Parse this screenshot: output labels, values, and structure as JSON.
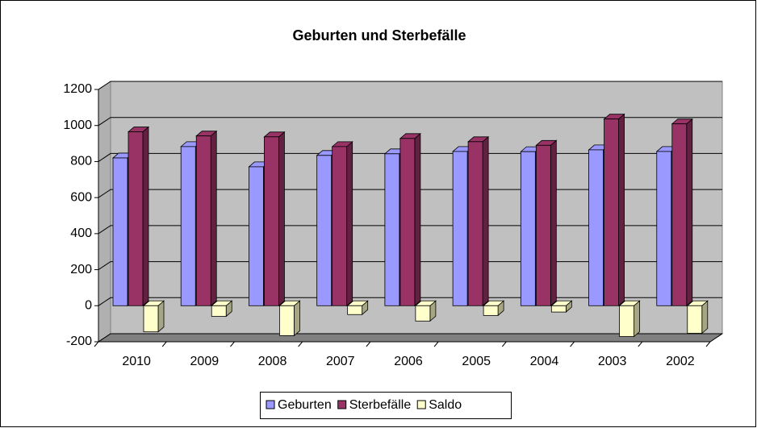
{
  "chart_data": {
    "type": "bar3d",
    "title": "Geburten und Sterbefälle",
    "categories": [
      "2010",
      "2009",
      "2008",
      "2007",
      "2006",
      "2005",
      "2004",
      "2003",
      "2002"
    ],
    "series": [
      {
        "name": "Geburten",
        "color": "#9999ff",
        "values": [
          820,
          883,
          771,
          834,
          843,
          856,
          855,
          865,
          856
        ]
      },
      {
        "name": "Sterbefälle",
        "color": "#993366",
        "values": [
          965,
          942,
          937,
          883,
          928,
          910,
          890,
          1036,
          1009
        ]
      },
      {
        "name": "Saldo",
        "color": "#ffffcc",
        "values": [
          -145,
          -59,
          -166,
          -49,
          -85,
          -54,
          -35,
          -171,
          -153
        ]
      }
    ],
    "ylim": [
      -200,
      1200
    ],
    "yticks": [
      -200,
      0,
      200,
      400,
      600,
      800,
      1000,
      1200
    ],
    "grid": true,
    "legend": "bottom"
  }
}
